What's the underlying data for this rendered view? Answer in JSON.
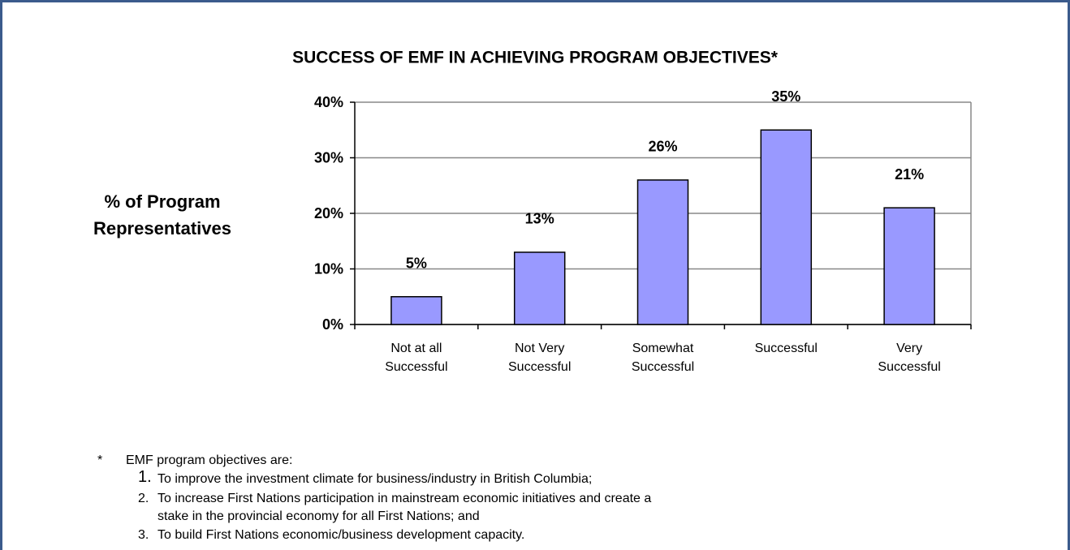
{
  "chart_data": {
    "type": "bar",
    "title": "SUCCESS OF EMF IN ACHIEVING PROGRAM OBJECTIVES*",
    "ylabel": "% of Program\nRepresentatives",
    "categories": [
      "Not at all\nSuccessful",
      "Not Very\nSuccessful",
      "Somewhat\nSuccessful",
      "Successful",
      "Very\nSuccessful"
    ],
    "values": [
      5,
      13,
      26,
      35,
      21
    ],
    "value_labels": [
      "5%",
      "13%",
      "26%",
      "35%",
      "21%"
    ],
    "color": "#9999ff",
    "ylim": [
      0,
      40
    ],
    "yticks": [
      {
        "value": 0,
        "label": "0%"
      },
      {
        "value": 10,
        "label": "10%"
      },
      {
        "value": 20,
        "label": "20%"
      },
      {
        "value": 30,
        "label": "30%"
      },
      {
        "value": 40,
        "label": "40%"
      }
    ],
    "grid": true
  },
  "notes": {
    "marker": "*",
    "text": "EMF program objectives are:",
    "items": [
      {
        "number": "1.",
        "text": "To improve the investment climate for business/industry in British Columbia;"
      },
      {
        "number": "2.",
        "text": "To increase First Nations participation in mainstream economic initiatives and create a\nstake in the provincial economy for all First Nations; and"
      },
      {
        "number": "3.",
        "text": "To build First Nations economic/business development capacity."
      }
    ]
  }
}
